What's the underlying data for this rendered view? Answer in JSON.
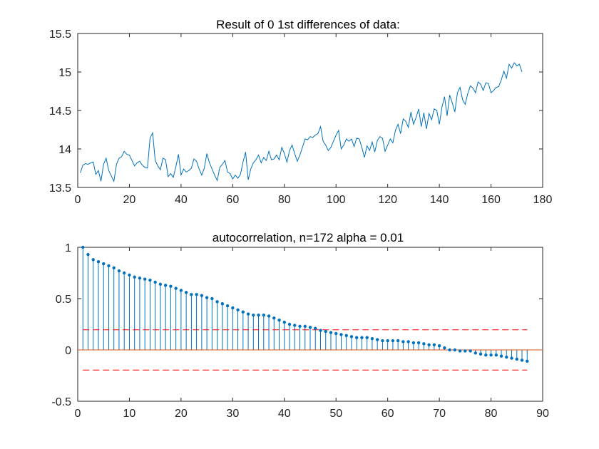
{
  "chart_data": [
    {
      "type": "line",
      "title": "Result of 0 1st differences of data:",
      "xlabel": "",
      "ylabel": "",
      "xlim": [
        0,
        180
      ],
      "ylim": [
        13.5,
        15.5
      ],
      "xticks": [
        0,
        20,
        40,
        60,
        80,
        100,
        120,
        140,
        160,
        180
      ],
      "xtick_labels": [
        "0",
        "20",
        "40",
        "60",
        "80",
        "100",
        "120",
        "140",
        "160",
        "180"
      ],
      "yticks": [
        13.5,
        14,
        14.5,
        15,
        15.5
      ],
      "ytick_labels": [
        "13.5",
        "14",
        "14.5",
        "15",
        "15.5"
      ],
      "grid": false,
      "line_color": "#0072BD",
      "series": [
        {
          "x": [
            1,
            2,
            3,
            4,
            5,
            6,
            7,
            8,
            9,
            10,
            11,
            12,
            13,
            14,
            15,
            16,
            17,
            18,
            19,
            20,
            21,
            22,
            23,
            24,
            25,
            26,
            27,
            28,
            29,
            30,
            31,
            32,
            33,
            34,
            35,
            36,
            37,
            38,
            39,
            40,
            41,
            42,
            43,
            44,
            45,
            46,
            47,
            48,
            49,
            50,
            51,
            52,
            53,
            54,
            55,
            56,
            57,
            58,
            59,
            60,
            61,
            62,
            63,
            64,
            65,
            66,
            67,
            68,
            69,
            70,
            71,
            72,
            73,
            74,
            75,
            76,
            77,
            78,
            79,
            80,
            81,
            82,
            83,
            84,
            85,
            86,
            87,
            88,
            89,
            90,
            91,
            92,
            93,
            94,
            95,
            96,
            97,
            98,
            99,
            100,
            101,
            102,
            103,
            104,
            105,
            106,
            107,
            108,
            109,
            110,
            111,
            112,
            113,
            114,
            115,
            116,
            117,
            118,
            119,
            120,
            121,
            122,
            123,
            124,
            125,
            126,
            127,
            128,
            129,
            130,
            131,
            132,
            133,
            134,
            135,
            136,
            137,
            138,
            139,
            140,
            141,
            142,
            143,
            144,
            145,
            146,
            147,
            148,
            149,
            150,
            151,
            152,
            153,
            154,
            155,
            156,
            157,
            158,
            159,
            160,
            161,
            162,
            163,
            164,
            165,
            166,
            167,
            168,
            169,
            170,
            171,
            172
          ],
          "values": [
            13.69,
            13.79,
            13.81,
            13.8,
            13.82,
            13.83,
            13.67,
            13.72,
            13.58,
            13.8,
            13.88,
            13.72,
            13.65,
            13.58,
            13.8,
            13.88,
            13.9,
            13.97,
            13.93,
            13.92,
            13.85,
            13.78,
            13.82,
            13.84,
            13.79,
            13.76,
            13.75,
            14.14,
            14.21,
            13.85,
            13.78,
            13.73,
            13.88,
            13.86,
            13.64,
            13.68,
            13.63,
            13.77,
            13.93,
            13.66,
            13.74,
            13.7,
            13.72,
            13.75,
            13.87,
            13.84,
            13.74,
            13.66,
            13.75,
            13.94,
            13.82,
            13.74,
            13.66,
            13.59,
            13.76,
            13.8,
            13.85,
            13.7,
            13.68,
            13.61,
            13.66,
            13.62,
            13.67,
            13.83,
            13.96,
            13.6,
            13.74,
            13.82,
            13.86,
            13.92,
            13.82,
            13.89,
            13.85,
            13.97,
            13.86,
            13.87,
            13.92,
            13.86,
            14.02,
            13.94,
            13.83,
            13.98,
            14.05,
            13.94,
            13.84,
            13.92,
            14.02,
            14.13,
            14.12,
            14.16,
            14.15,
            14.18,
            14.2,
            14.29,
            14.1,
            14.05,
            13.98,
            14.02,
            14.1,
            14.18,
            14.24,
            14.0,
            14.05,
            14.13,
            14.1,
            14.13,
            14.03,
            14.14,
            14.13,
            14.02,
            13.89,
            14.04,
            13.98,
            14.09,
            13.96,
            14.11,
            14.16,
            14.14,
            13.97,
            14.05,
            14.13,
            14.08,
            14.24,
            14.32,
            14.2,
            14.39,
            14.36,
            14.28,
            14.48,
            14.32,
            14.41,
            14.52,
            14.29,
            14.47,
            14.26,
            14.46,
            14.38,
            14.52,
            14.5,
            14.32,
            14.54,
            14.68,
            14.43,
            14.7,
            14.6,
            14.48,
            14.73,
            14.8,
            14.64,
            14.58,
            14.72,
            14.82,
            14.79,
            14.73,
            14.87,
            14.84,
            14.76,
            14.86,
            14.85,
            14.73,
            14.76,
            14.8,
            14.81,
            14.9,
            15.01,
            14.92,
            15.1,
            15.05,
            15.12,
            15.08,
            15.1,
            15.0
          ]
        }
      ]
    },
    {
      "type": "stem",
      "title": "autocorrelation, n=172 alpha = 0.01",
      "xlabel": "",
      "ylabel": "",
      "xlim": [
        0,
        90
      ],
      "ylim": [
        -0.5,
        1
      ],
      "xticks": [
        0,
        10,
        20,
        30,
        40,
        50,
        60,
        70,
        80,
        90
      ],
      "xtick_labels": [
        "0",
        "10",
        "20",
        "30",
        "40",
        "50",
        "60",
        "70",
        "80",
        "90"
      ],
      "yticks": [
        -0.5,
        0,
        0.5,
        1
      ],
      "ytick_labels": [
        "-0.5",
        "0",
        "0.5",
        "1"
      ],
      "grid": false,
      "stem_color": "#0072BD",
      "baseline": 0,
      "baseline_color": "#D95319",
      "confidence_bounds": [
        0.196,
        -0.196
      ],
      "confidence_xrange": [
        1,
        87
      ],
      "confidence_color": "#FF0000",
      "series": [
        {
          "x": [
            1,
            2,
            3,
            4,
            5,
            6,
            7,
            8,
            9,
            10,
            11,
            12,
            13,
            14,
            15,
            16,
            17,
            18,
            19,
            20,
            21,
            22,
            23,
            24,
            25,
            26,
            27,
            28,
            29,
            30,
            31,
            32,
            33,
            34,
            35,
            36,
            37,
            38,
            39,
            40,
            41,
            42,
            43,
            44,
            45,
            46,
            47,
            48,
            49,
            50,
            51,
            52,
            53,
            54,
            55,
            56,
            57,
            58,
            59,
            60,
            61,
            62,
            63,
            64,
            65,
            66,
            67,
            68,
            69,
            70,
            71,
            72,
            73,
            74,
            75,
            76,
            77,
            78,
            79,
            80,
            81,
            82,
            83,
            84,
            85,
            86,
            87
          ],
          "values": [
            1.0,
            0.93,
            0.88,
            0.86,
            0.84,
            0.82,
            0.8,
            0.77,
            0.75,
            0.73,
            0.71,
            0.7,
            0.69,
            0.68,
            0.66,
            0.64,
            0.63,
            0.62,
            0.6,
            0.58,
            0.56,
            0.54,
            0.54,
            0.53,
            0.51,
            0.5,
            0.47,
            0.45,
            0.43,
            0.41,
            0.39,
            0.37,
            0.35,
            0.34,
            0.34,
            0.34,
            0.33,
            0.31,
            0.29,
            0.27,
            0.25,
            0.24,
            0.23,
            0.23,
            0.22,
            0.21,
            0.19,
            0.18,
            0.17,
            0.16,
            0.15,
            0.14,
            0.13,
            0.12,
            0.12,
            0.12,
            0.11,
            0.1,
            0.09,
            0.09,
            0.09,
            0.09,
            0.08,
            0.08,
            0.07,
            0.07,
            0.06,
            0.05,
            0.05,
            0.04,
            0.02,
            0.0,
            0.0,
            -0.01,
            -0.01,
            -0.01,
            -0.03,
            -0.04,
            -0.05,
            -0.05,
            -0.05,
            -0.06,
            -0.07,
            -0.08,
            -0.09,
            -0.1,
            -0.11
          ]
        }
      ]
    }
  ]
}
